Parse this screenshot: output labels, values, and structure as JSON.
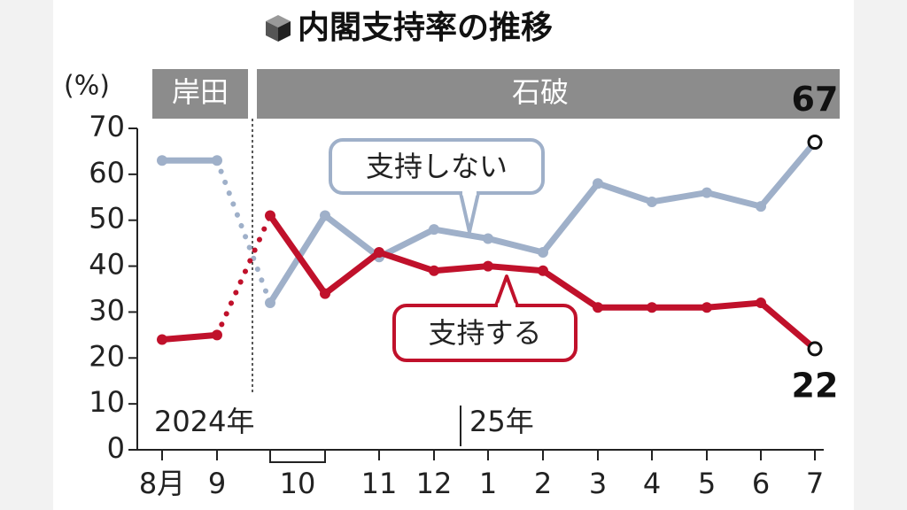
{
  "chart_data": {
    "type": "line",
    "title": "内閣支持率の推移",
    "y_unit": "(%)",
    "periods": [
      "岸田",
      "石破"
    ],
    "year_labels": [
      "2024年",
      "25年"
    ],
    "categories": [
      "8月",
      "9",
      "10",
      null,
      "11",
      "12",
      "1",
      "2",
      "3",
      "4",
      "5",
      "6",
      "7"
    ],
    "series": [
      {
        "name": "支持しない",
        "color": "#9fb0c9",
        "values": [
          63,
          63,
          32,
          51,
          42,
          48,
          46,
          43,
          58,
          54,
          56,
          53,
          67
        ]
      },
      {
        "name": "支持する",
        "color": "#c0112b",
        "values": [
          24,
          25,
          51,
          34,
          43,
          39,
          40,
          39,
          31,
          31,
          31,
          32,
          22
        ]
      }
    ],
    "ylim": [
      0,
      70
    ],
    "yticks": [
      0,
      10,
      20,
      30,
      40,
      50,
      60,
      70
    ],
    "grid": false
  }
}
